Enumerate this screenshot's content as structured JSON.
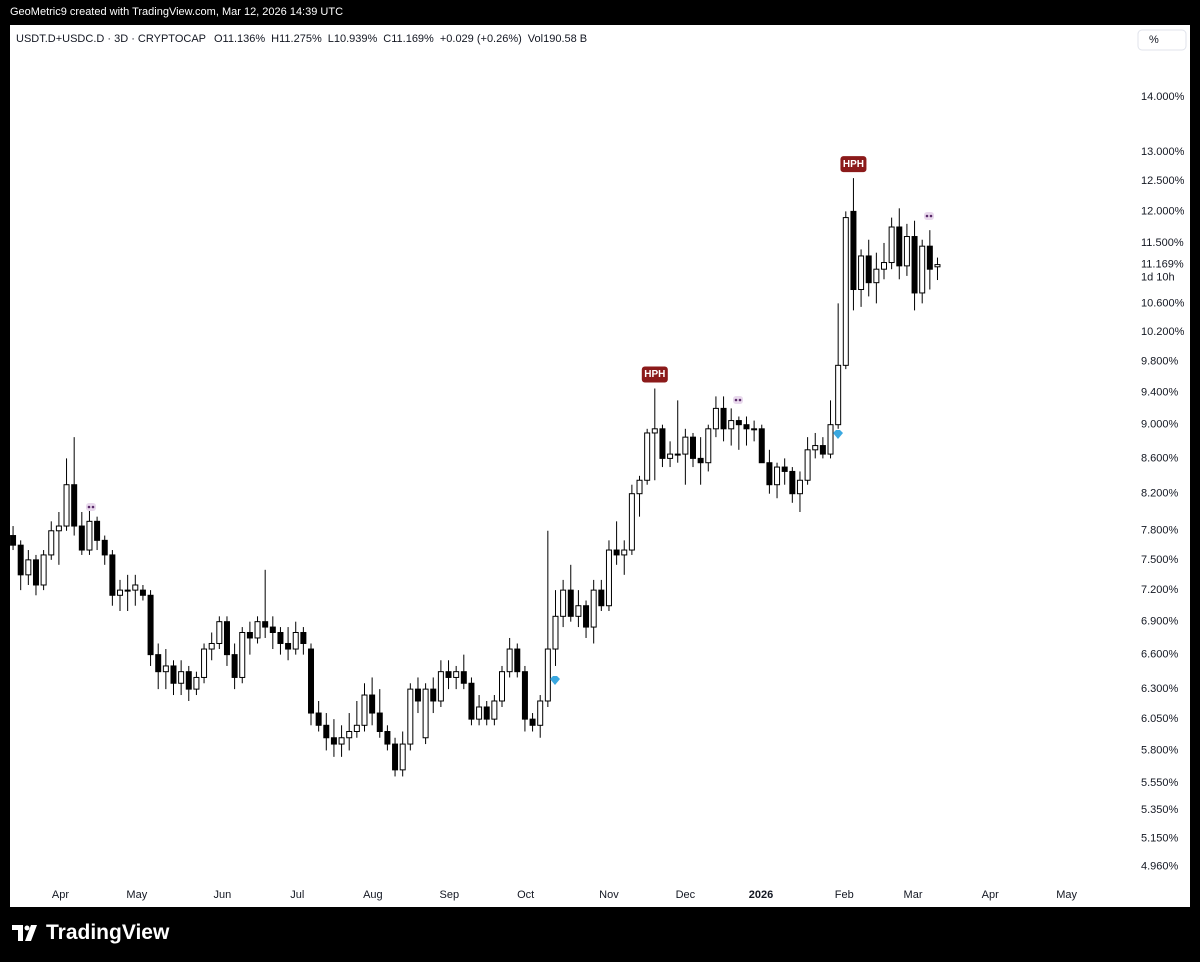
{
  "watermark": "GeoMetric9 created with TradingView.com, Mar 12, 2026 14:39 UTC",
  "brand": "TradingView",
  "scale_button": "%",
  "chart_data": {
    "type": "candlestick",
    "header": [
      "USDT.D+USDC.D · 3D · CRYPTOCAP",
      "O11.136%",
      "H11.275%",
      "L10.939%",
      "C11.169%",
      "+0.029 (+0.26%)",
      "Vol190.58 B"
    ],
    "log_scale": true,
    "ylim": [
      4.87,
      15.43
    ],
    "yticks": [
      {
        "value": 14,
        "label": "14.000%"
      },
      {
        "value": 13,
        "label": "13.000%"
      },
      {
        "value": 12.5,
        "label": "12.500%"
      },
      {
        "value": 12,
        "label": "12.000%"
      },
      {
        "value": 11.5,
        "label": "11.500%"
      },
      {
        "value": 10.6,
        "label": "10.600%"
      },
      {
        "value": 10.2,
        "label": "10.200%"
      },
      {
        "value": 9.8,
        "label": "9.800%"
      },
      {
        "value": 9.4,
        "label": "9.400%"
      },
      {
        "value": 9,
        "label": "9.000%"
      },
      {
        "value": 8.6,
        "label": "8.600%"
      },
      {
        "value": 8.2,
        "label": "8.200%"
      },
      {
        "value": 7.8,
        "label": "7.800%"
      },
      {
        "value": 7.5,
        "label": "7.500%"
      },
      {
        "value": 7.2,
        "label": "7.200%"
      },
      {
        "value": 6.9,
        "label": "6.900%"
      },
      {
        "value": 6.6,
        "label": "6.600%"
      },
      {
        "value": 6.3,
        "label": "6.300%"
      },
      {
        "value": 6.05,
        "label": "6.050%"
      },
      {
        "value": 5.8,
        "label": "5.800%"
      },
      {
        "value": 5.55,
        "label": "5.550%"
      },
      {
        "value": 5.35,
        "label": "5.350%"
      },
      {
        "value": 5.15,
        "label": "5.150%"
      },
      {
        "value": 4.96,
        "label": "4.960%"
      }
    ],
    "last_price": {
      "value": 11.169,
      "label": "11.169%"
    },
    "countdown": "1d 10h",
    "xlim": [
      -0.4,
      146.2
    ],
    "xticks": [
      {
        "value": 6.2,
        "label": "Apr"
      },
      {
        "value": 16.2,
        "label": "May"
      },
      {
        "value": 27.4,
        "label": "Jun"
      },
      {
        "value": 37.2,
        "label": "Jul"
      },
      {
        "value": 47.1,
        "label": "Aug"
      },
      {
        "value": 57.1,
        "label": "Sep"
      },
      {
        "value": 67.1,
        "label": "Oct"
      },
      {
        "value": 78.0,
        "label": "Nov"
      },
      {
        "value": 88.0,
        "label": "Dec"
      },
      {
        "value": 97.9,
        "label": "2026"
      },
      {
        "value": 108.8,
        "label": "Feb"
      },
      {
        "value": 117.8,
        "label": "Mar"
      },
      {
        "value": 127.9,
        "label": "Apr"
      },
      {
        "value": 137.9,
        "label": "May"
      }
    ],
    "open": [
      7.75,
      7.65,
      7.35,
      7.5,
      7.25,
      7.55,
      7.8,
      7.85,
      8.3,
      7.85,
      7.6,
      7.9,
      7.7,
      7.55,
      7.15,
      7.2,
      7.2,
      7.2,
      7.15,
      6.6,
      6.45,
      6.5,
      6.35,
      6.45,
      6.3,
      6.4,
      6.65,
      6.7,
      6.9,
      6.6,
      6.4,
      6.8,
      6.75,
      6.9,
      6.85,
      6.8,
      6.7,
      6.65,
      6.8,
      6.65,
      6.1,
      6.0,
      5.9,
      5.85,
      5.9,
      5.95,
      6.0,
      6.25,
      6.1,
      5.95,
      5.85,
      5.65,
      5.85,
      6.3,
      5.9,
      6.3,
      6.2,
      6.45,
      6.4,
      6.45,
      6.35,
      6.05,
      6.15,
      6.05,
      6.2,
      6.45,
      6.65,
      6.45,
      6.05,
      6.0,
      6.2,
      6.65,
      6.95,
      7.2,
      6.95,
      7.05,
      6.85,
      7.2,
      7.05,
      7.6,
      7.55,
      7.6,
      8.2,
      8.35,
      8.9,
      8.95,
      8.6,
      8.65,
      8.65,
      8.85,
      8.6,
      8.55,
      8.95,
      9.2,
      8.95,
      9.05,
      9.0,
      8.95,
      8.95,
      8.55,
      8.3,
      8.5,
      8.45,
      8.2,
      8.35,
      8.7,
      8.75,
      8.65,
      9.0,
      9.75,
      12.0,
      10.8,
      11.3,
      10.9,
      11.1,
      11.2,
      11.75,
      11.15,
      11.6,
      10.75,
      11.45,
      11.136
    ],
    "high": [
      7.85,
      7.7,
      7.6,
      7.55,
      7.6,
      7.9,
      8.0,
      8.6,
      8.85,
      8.0,
      8.05,
      7.95,
      7.75,
      7.6,
      7.3,
      7.35,
      7.35,
      7.25,
      7.2,
      6.7,
      6.65,
      6.55,
      6.55,
      6.5,
      6.45,
      6.7,
      6.8,
      6.95,
      6.95,
      6.7,
      6.85,
      6.9,
      6.95,
      7.4,
      6.95,
      6.85,
      6.85,
      6.9,
      6.85,
      6.7,
      6.2,
      6.1,
      6.05,
      6.0,
      6.1,
      6.2,
      6.35,
      6.4,
      6.3,
      6.0,
      5.9,
      5.95,
      6.35,
      6.4,
      6.35,
      6.4,
      6.55,
      6.55,
      6.5,
      6.6,
      6.4,
      6.25,
      6.2,
      6.25,
      6.5,
      6.75,
      6.7,
      6.5,
      6.1,
      6.25,
      7.8,
      7.2,
      7.3,
      7.45,
      7.2,
      7.1,
      7.3,
      7.3,
      7.7,
      7.9,
      7.7,
      8.3,
      8.4,
      8.95,
      9.45,
      9.0,
      8.8,
      9.3,
      8.95,
      8.9,
      8.85,
      9.0,
      9.35,
      9.35,
      9.2,
      9.1,
      9.1,
      9.05,
      9.0,
      8.7,
      8.55,
      8.6,
      8.5,
      8.45,
      8.85,
      8.9,
      8.85,
      9.3,
      10.6,
      12.0,
      12.55,
      11.4,
      11.55,
      11.35,
      11.5,
      11.9,
      12.05,
      11.8,
      11.85,
      11.55,
      11.7,
      11.275
    ],
    "low": [
      7.6,
      7.2,
      7.25,
      7.15,
      7.2,
      7.5,
      7.45,
      7.8,
      7.75,
      7.55,
      7.55,
      7.6,
      7.45,
      7.05,
      7.0,
      7.0,
      7.05,
      7.1,
      6.5,
      6.3,
      6.3,
      6.25,
      6.25,
      6.2,
      6.25,
      6.35,
      6.55,
      6.65,
      6.5,
      6.3,
      6.35,
      6.6,
      6.7,
      6.75,
      6.65,
      6.6,
      6.55,
      6.6,
      6.6,
      6.0,
      5.95,
      5.8,
      5.75,
      5.75,
      5.8,
      5.9,
      5.95,
      6.0,
      5.9,
      5.8,
      5.6,
      5.6,
      5.8,
      6.1,
      5.85,
      6.1,
      6.15,
      6.3,
      6.3,
      6.3,
      6.0,
      6.0,
      6.0,
      6.0,
      6.15,
      6.4,
      6.4,
      5.95,
      5.95,
      5.9,
      6.15,
      6.5,
      6.85,
      6.9,
      6.85,
      6.75,
      6.7,
      7.0,
      7.0,
      7.45,
      7.35,
      7.55,
      7.95,
      8.3,
      8.35,
      8.5,
      8.5,
      8.55,
      8.3,
      8.5,
      8.3,
      8.45,
      8.85,
      8.8,
      8.75,
      8.7,
      8.75,
      8.8,
      8.55,
      8.2,
      8.15,
      8.3,
      8.1,
      8.0,
      8.3,
      8.6,
      8.6,
      8.6,
      8.95,
      9.7,
      10.5,
      10.55,
      10.7,
      10.6,
      10.95,
      11.1,
      10.95,
      11.0,
      10.5,
      10.6,
      10.8,
      10.939
    ],
    "close": [
      7.65,
      7.35,
      7.5,
      7.25,
      7.55,
      7.8,
      7.85,
      8.3,
      7.85,
      7.6,
      7.9,
      7.7,
      7.55,
      7.15,
      7.2,
      7.2,
      7.25,
      7.15,
      6.6,
      6.45,
      6.5,
      6.35,
      6.45,
      6.3,
      6.4,
      6.65,
      6.7,
      6.9,
      6.6,
      6.4,
      6.8,
      6.75,
      6.9,
      6.85,
      6.8,
      6.7,
      6.65,
      6.8,
      6.7,
      6.1,
      6.0,
      5.9,
      5.85,
      5.9,
      5.95,
      6.0,
      6.25,
      6.1,
      5.95,
      5.85,
      5.65,
      5.85,
      6.3,
      6.2,
      6.3,
      6.2,
      6.45,
      6.4,
      6.45,
      6.35,
      6.05,
      6.15,
      6.05,
      6.2,
      6.45,
      6.65,
      6.45,
      6.05,
      6.0,
      6.2,
      6.65,
      6.95,
      7.2,
      6.95,
      7.05,
      6.85,
      7.2,
      7.05,
      7.6,
      7.55,
      7.6,
      8.2,
      8.35,
      8.9,
      8.95,
      8.6,
      8.65,
      8.65,
      8.85,
      8.6,
      8.55,
      8.95,
      9.2,
      8.95,
      9.05,
      9.0,
      8.95,
      8.95,
      8.55,
      8.3,
      8.5,
      8.45,
      8.2,
      8.35,
      8.7,
      8.75,
      8.65,
      9.0,
      9.75,
      11.9,
      10.8,
      11.3,
      10.9,
      11.1,
      11.2,
      11.75,
      11.15,
      11.6,
      10.75,
      11.45,
      11.1,
      11.169
    ],
    "up_color": "#ffffff",
    "down_color": "#000000",
    "border_color": "#000000",
    "annotations": [
      {
        "text": "HPH",
        "candle": 84
      },
      {
        "text": "HPH",
        "candle": 110
      }
    ]
  }
}
